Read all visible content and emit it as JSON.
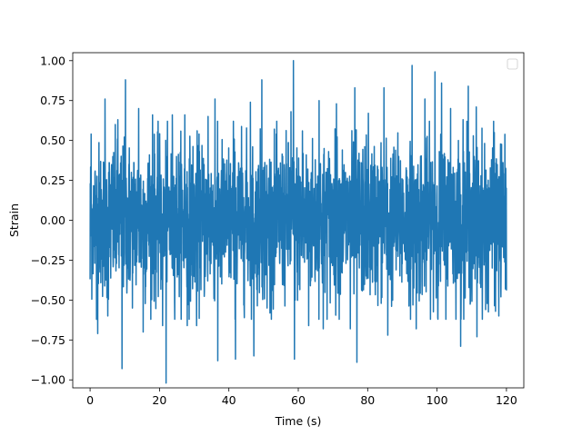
{
  "chart_data": {
    "type": "line",
    "title": "",
    "xlabel": "Time (s)",
    "ylabel": "Strain",
    "xlim": [
      -5,
      125
    ],
    "ylim": [
      -1.05,
      1.05
    ],
    "x_ticks": [
      0,
      20,
      40,
      60,
      80,
      100,
      120
    ],
    "y_ticks": [
      -1.0,
      -0.75,
      -0.5,
      -0.25,
      0.0,
      0.25,
      0.5,
      0.75,
      1.0
    ],
    "x_tick_labels": [
      "0",
      "20",
      "40",
      "60",
      "80",
      "100",
      "120"
    ],
    "y_tick_labels": [
      "−1.00",
      "−0.75",
      "−0.50",
      "−0.25",
      "0.00",
      "0.25",
      "0.50",
      "0.75",
      "1.00"
    ],
    "legend": {
      "placement": "top-right",
      "entries": []
    },
    "grid": false,
    "series": [
      {
        "color": "#1f77b4",
        "x_start": 0,
        "x_end": 120,
        "y_range": [
          -1.02,
          1.0
        ],
        "description_points": [
          {
            "x": 0.0,
            "y": -0.37
          },
          {
            "x": 0.3,
            "y": 0.54
          },
          {
            "x": 2.2,
            "y": -0.71
          },
          {
            "x": 4.3,
            "y": 0.76
          },
          {
            "x": 5.1,
            "y": -0.6
          },
          {
            "x": 8.0,
            "y": 0.63
          },
          {
            "x": 9.2,
            "y": -0.93
          },
          {
            "x": 10.2,
            "y": 0.88
          },
          {
            "x": 14.0,
            "y": 0.7
          },
          {
            "x": 15.3,
            "y": -0.7
          },
          {
            "x": 18.0,
            "y": 0.66
          },
          {
            "x": 20.9,
            "y": -0.66
          },
          {
            "x": 21.9,
            "y": -1.02
          },
          {
            "x": 23.7,
            "y": 0.66
          },
          {
            "x": 27.3,
            "y": 0.66
          },
          {
            "x": 28.0,
            "y": -0.66
          },
          {
            "x": 30.7,
            "y": -0.66
          },
          {
            "x": 34.0,
            "y": 0.65
          },
          {
            "x": 36.0,
            "y": 0.76
          },
          {
            "x": 36.8,
            "y": -0.88
          },
          {
            "x": 41.3,
            "y": 0.62
          },
          {
            "x": 41.9,
            "y": -0.87
          },
          {
            "x": 46.2,
            "y": 0.74
          },
          {
            "x": 47.2,
            "y": -0.85
          },
          {
            "x": 49.5,
            "y": 0.88
          },
          {
            "x": 51.0,
            "y": -0.55
          },
          {
            "x": 57.9,
            "y": 0.68
          },
          {
            "x": 58.6,
            "y": 1.0
          },
          {
            "x": 58.9,
            "y": -0.87
          },
          {
            "x": 61.2,
            "y": 0.56
          },
          {
            "x": 63.0,
            "y": -0.66
          },
          {
            "x": 66.0,
            "y": 0.75
          },
          {
            "x": 67.2,
            "y": -0.68
          },
          {
            "x": 71.0,
            "y": 0.73
          },
          {
            "x": 75.0,
            "y": -0.68
          },
          {
            "x": 76.3,
            "y": 0.83
          },
          {
            "x": 76.9,
            "y": -0.89
          },
          {
            "x": 80.2,
            "y": 0.67
          },
          {
            "x": 84.7,
            "y": 0.83
          },
          {
            "x": 85.8,
            "y": -0.72
          },
          {
            "x": 92.8,
            "y": 0.97
          },
          {
            "x": 94.0,
            "y": -0.68
          },
          {
            "x": 96.5,
            "y": 0.76
          },
          {
            "x": 99.4,
            "y": 0.93
          },
          {
            "x": 100.2,
            "y": -0.61
          },
          {
            "x": 101.3,
            "y": 0.86
          },
          {
            "x": 103.9,
            "y": 0.7
          },
          {
            "x": 106.8,
            "y": -0.79
          },
          {
            "x": 107.5,
            "y": 0.63
          },
          {
            "x": 109.0,
            "y": 0.84
          },
          {
            "x": 111.3,
            "y": 0.71
          },
          {
            "x": 111.5,
            "y": -0.73
          },
          {
            "x": 114.0,
            "y": -0.56
          },
          {
            "x": 116.5,
            "y": 0.55
          },
          {
            "x": 117.8,
            "y": -0.6
          },
          {
            "x": 120.0,
            "y": -0.44
          }
        ]
      }
    ]
  }
}
